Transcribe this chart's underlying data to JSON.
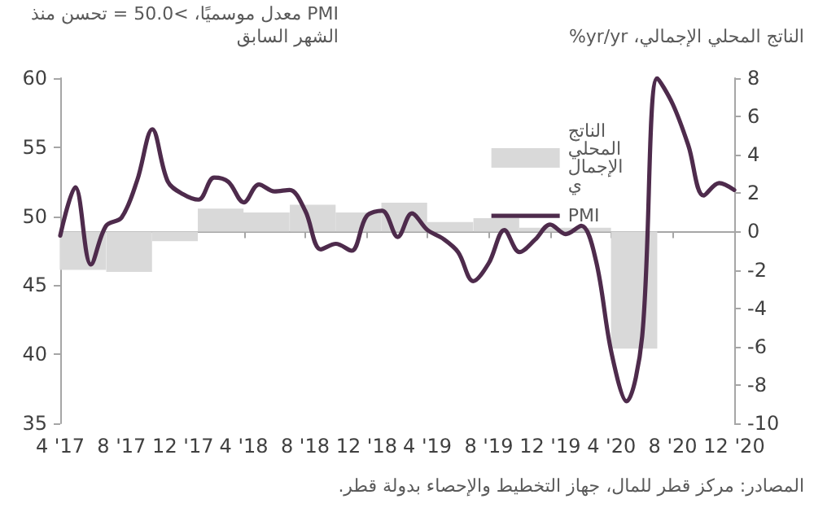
{
  "chart_data": {
    "type": "line",
    "ylabel": "PMI معدل موسميًا، >50.0 = تحسن منذ الشهر السابق",
    "y2label": "الناتج المحلي الإجمالي، yr/yr%",
    "annotations": [
      "المصادر: مركز قطر للمال، جهاز التخطيط والإحصاء بدولة قطر."
    ],
    "xlim": [
      "2017-04",
      "2020-12"
    ],
    "xticks": [
      {
        "value": "2017-04",
        "label": "4 '17"
      },
      {
        "value": "2017-08",
        "label": "8 '17"
      },
      {
        "value": "2017-12",
        "label": "12 '17"
      },
      {
        "value": "2018-04",
        "label": "4 '18"
      },
      {
        "value": "2018-08",
        "label": "8 '18"
      },
      {
        "value": "2018-12",
        "label": "12 '18"
      },
      {
        "value": "2019-04",
        "label": "4 '19"
      },
      {
        "value": "2019-08",
        "label": "8 '19"
      },
      {
        "value": "2019-12",
        "label": "12 '19"
      },
      {
        "value": "2020-04",
        "label": "4 '20"
      },
      {
        "value": "2020-08",
        "label": "8 '20"
      },
      {
        "value": "2020-12",
        "label": "12 '20"
      }
    ],
    "ylim": [
      35,
      60
    ],
    "yticks": [
      35,
      40,
      45,
      50,
      55,
      60
    ],
    "y2lim": [
      -10,
      8
    ],
    "y2ticks": [
      -10,
      -8,
      -6,
      -4,
      -2,
      0,
      2,
      4,
      6,
      8
    ],
    "legend": "top right",
    "marker": "none",
    "line_style": "solid",
    "series": [
      {
        "name": "الناتج المحلي الإجمالي",
        "type": "bar",
        "axis": "y2",
        "color": "#d9d9d9",
        "x": [
          "2017-05-16",
          "2017-08-16",
          "2017-11-15",
          "2018-02-14",
          "2018-05-16",
          "2018-08-16",
          "2018-11-15",
          "2019-02-14",
          "2019-05-16",
          "2019-08-16",
          "2019-11-15",
          "2020-02-14",
          "2020-05-16"
        ],
        "values": [
          -2.0,
          -2.1,
          -0.5,
          1.2,
          1.0,
          1.4,
          1.0,
          1.5,
          0.5,
          0.7,
          0.2,
          0.2,
          -6.1
        ]
      },
      {
        "name": "PMI",
        "color": "#4e2b4c",
        "x": [
          "2017-04",
          "2017-05",
          "2017-06",
          "2017-07",
          "2017-08",
          "2017-09",
          "2017-10",
          "2017-11",
          "2017-12",
          "2018-01",
          "2018-02",
          "2018-03",
          "2018-04",
          "2018-05",
          "2018-06",
          "2018-07",
          "2018-08",
          "2018-09",
          "2018-10",
          "2018-11",
          "2018-12",
          "2019-01",
          "2019-02",
          "2019-03",
          "2019-04",
          "2019-05",
          "2019-06",
          "2019-07",
          "2019-08",
          "2019-09",
          "2019-10",
          "2019-11",
          "2019-12",
          "2020-01",
          "2020-02",
          "2020-03",
          "2020-04",
          "2020-05",
          "2020-06",
          "2020-07",
          "2020-08",
          "2020-09",
          "2020-10",
          "2020-11",
          "2020-12"
        ],
        "values": [
          48.6,
          52.1,
          46.5,
          49.3,
          49.9,
          52.6,
          56.3,
          52.5,
          51.6,
          51.2,
          52.8,
          52.5,
          51.0,
          52.3,
          51.8,
          51.9,
          50.4,
          47.6,
          48.0,
          47.5,
          50.0,
          50.4,
          48.5,
          50.2,
          49.0,
          48.4,
          47.4,
          45.3,
          46.6,
          49.0,
          47.4,
          48.3,
          49.4,
          48.7,
          49.3,
          46.8,
          40.1,
          36.6,
          41.3,
          60.0,
          58.1,
          55.1,
          51.5,
          52.4,
          51.9
        ]
      }
    ]
  }
}
